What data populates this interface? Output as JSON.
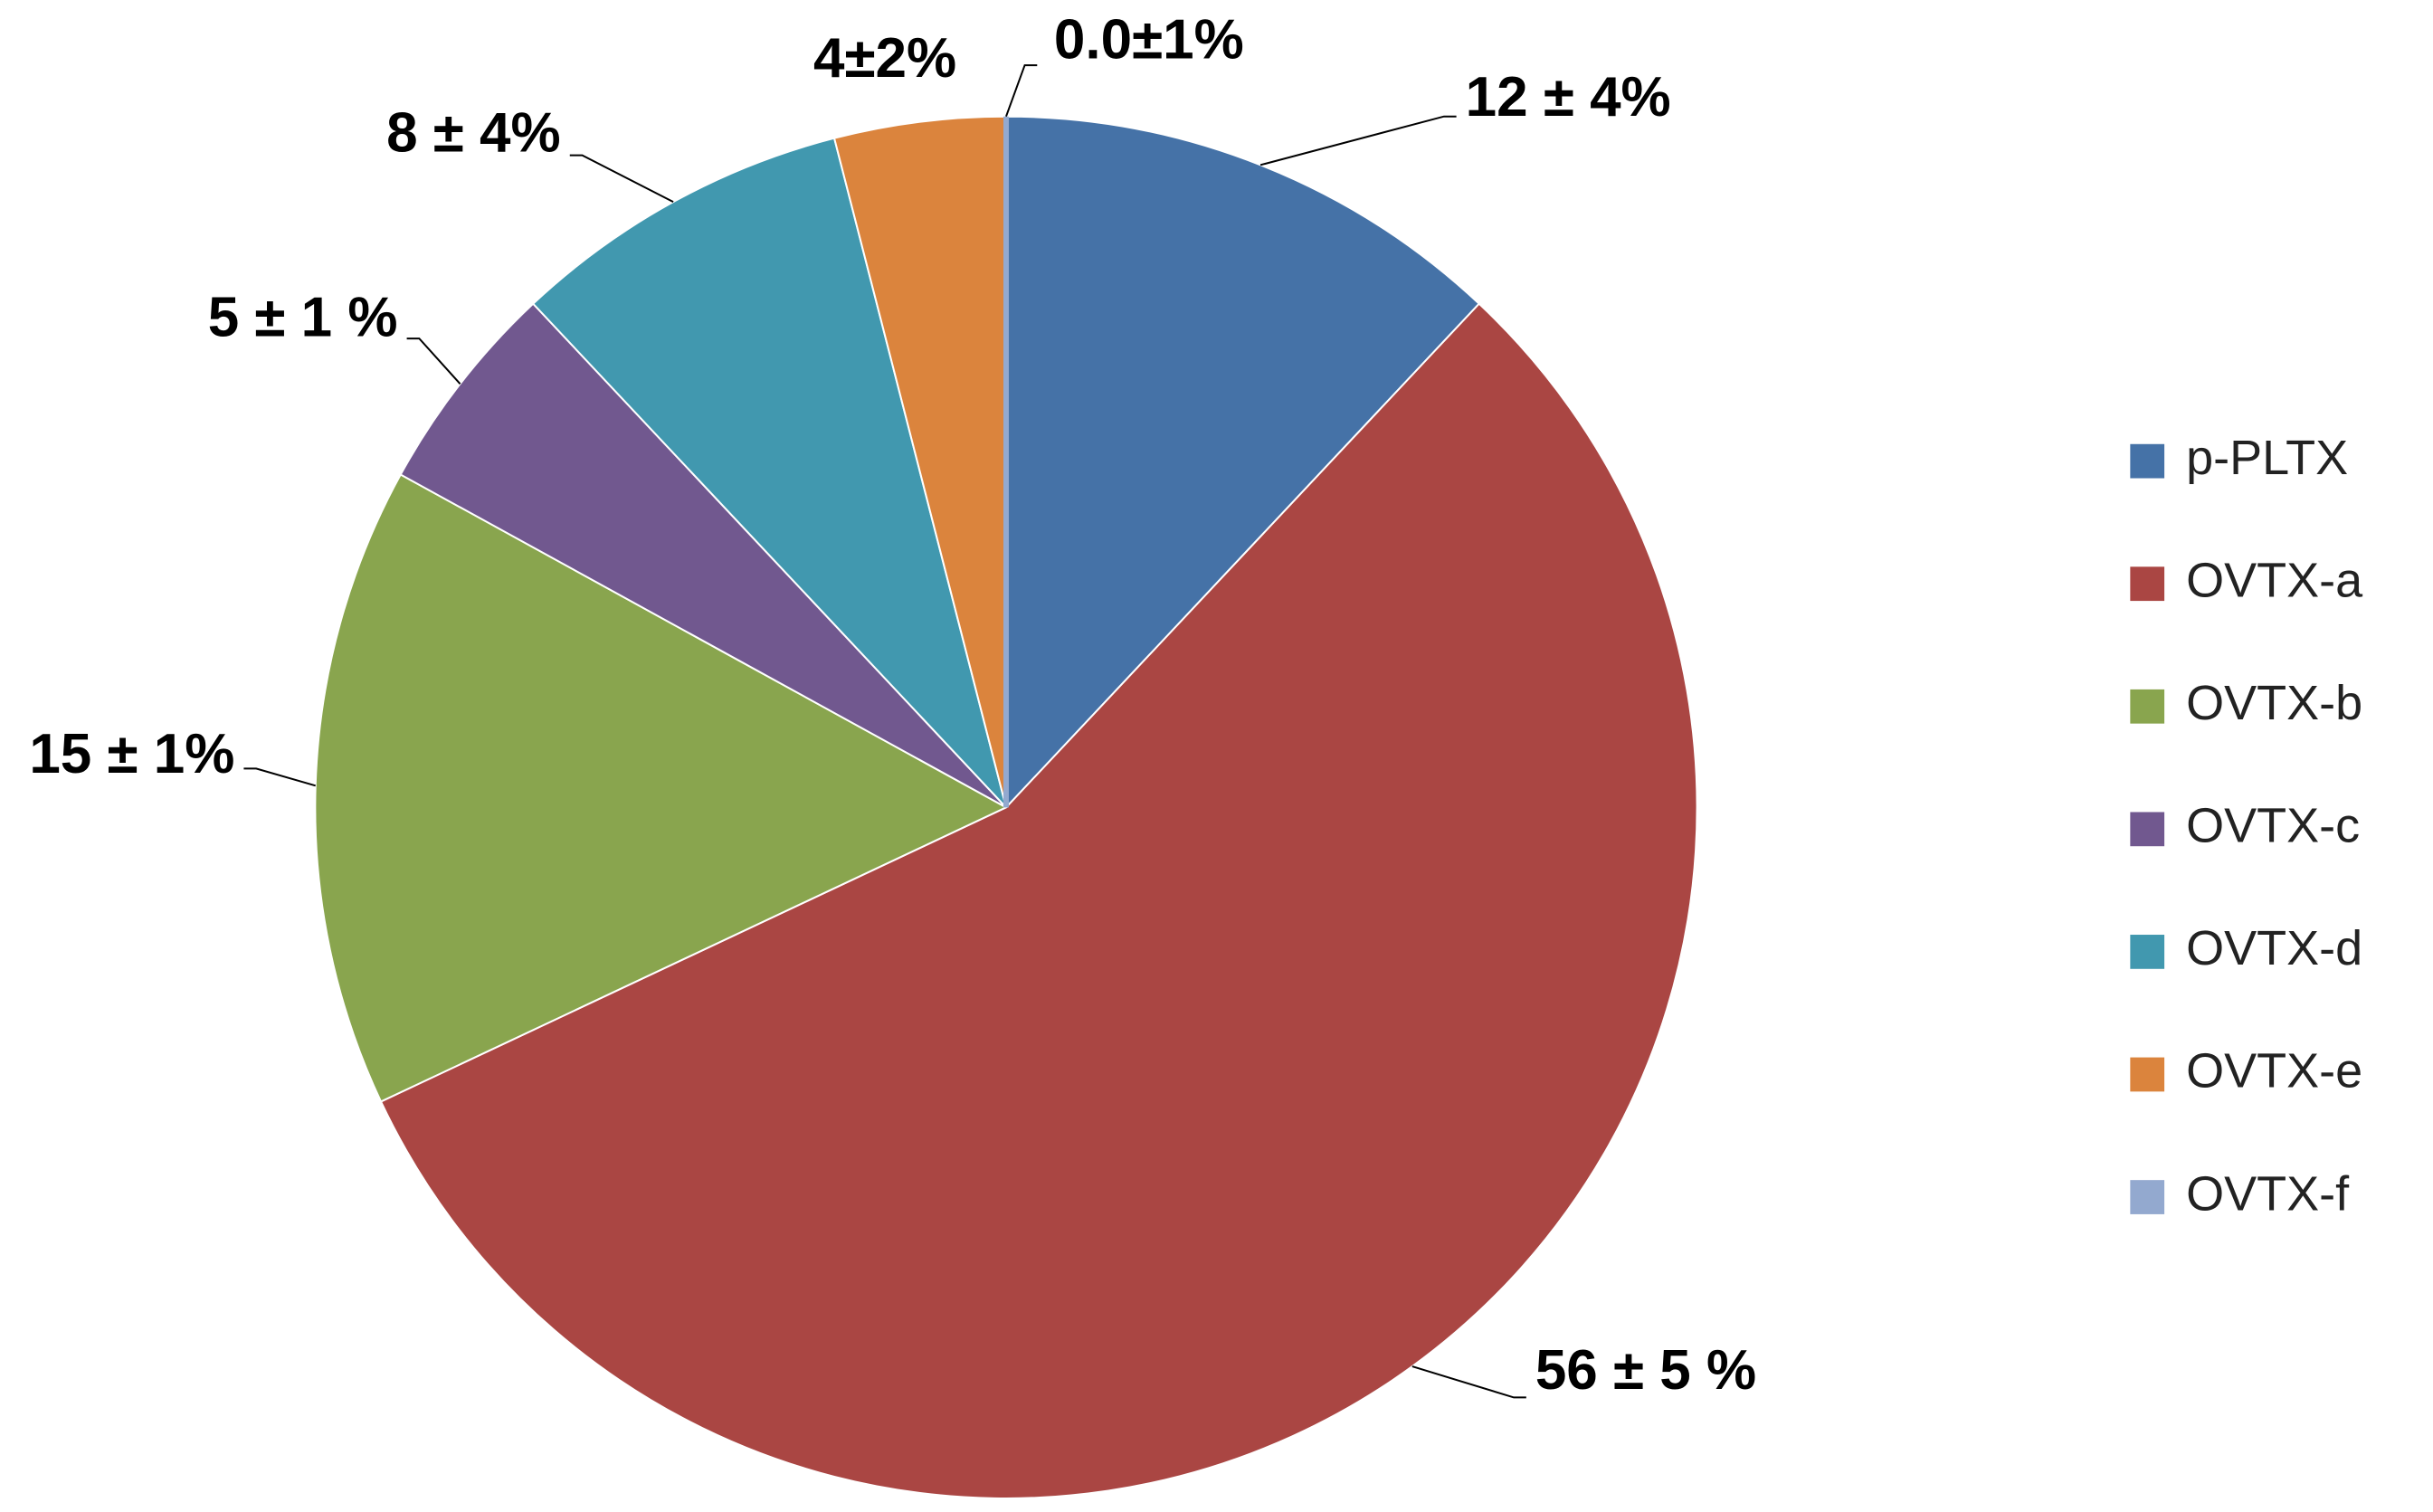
{
  "chart_data": {
    "type": "pie",
    "categories": [
      "p-PLTX",
      "OVTX-a",
      "OVTX-b",
      "OVTX-c",
      "OVTX-d",
      "OVTX-e",
      "OVTX-f"
    ],
    "values": [
      12,
      56,
      15,
      5,
      8,
      4,
      0.0
    ],
    "value_labels": [
      "12 ± 4%",
      "56 ± 5 %",
      "15 ± 1%",
      "5 ± 1 %",
      "8 ± 4%",
      "4±2%",
      "0.0±1%"
    ],
    "colors": [
      "#4572a7",
      "#aa4643",
      "#89a54e",
      "#71588f",
      "#4198af",
      "#db843d",
      "#93a9cf"
    ],
    "legend": "right"
  }
}
